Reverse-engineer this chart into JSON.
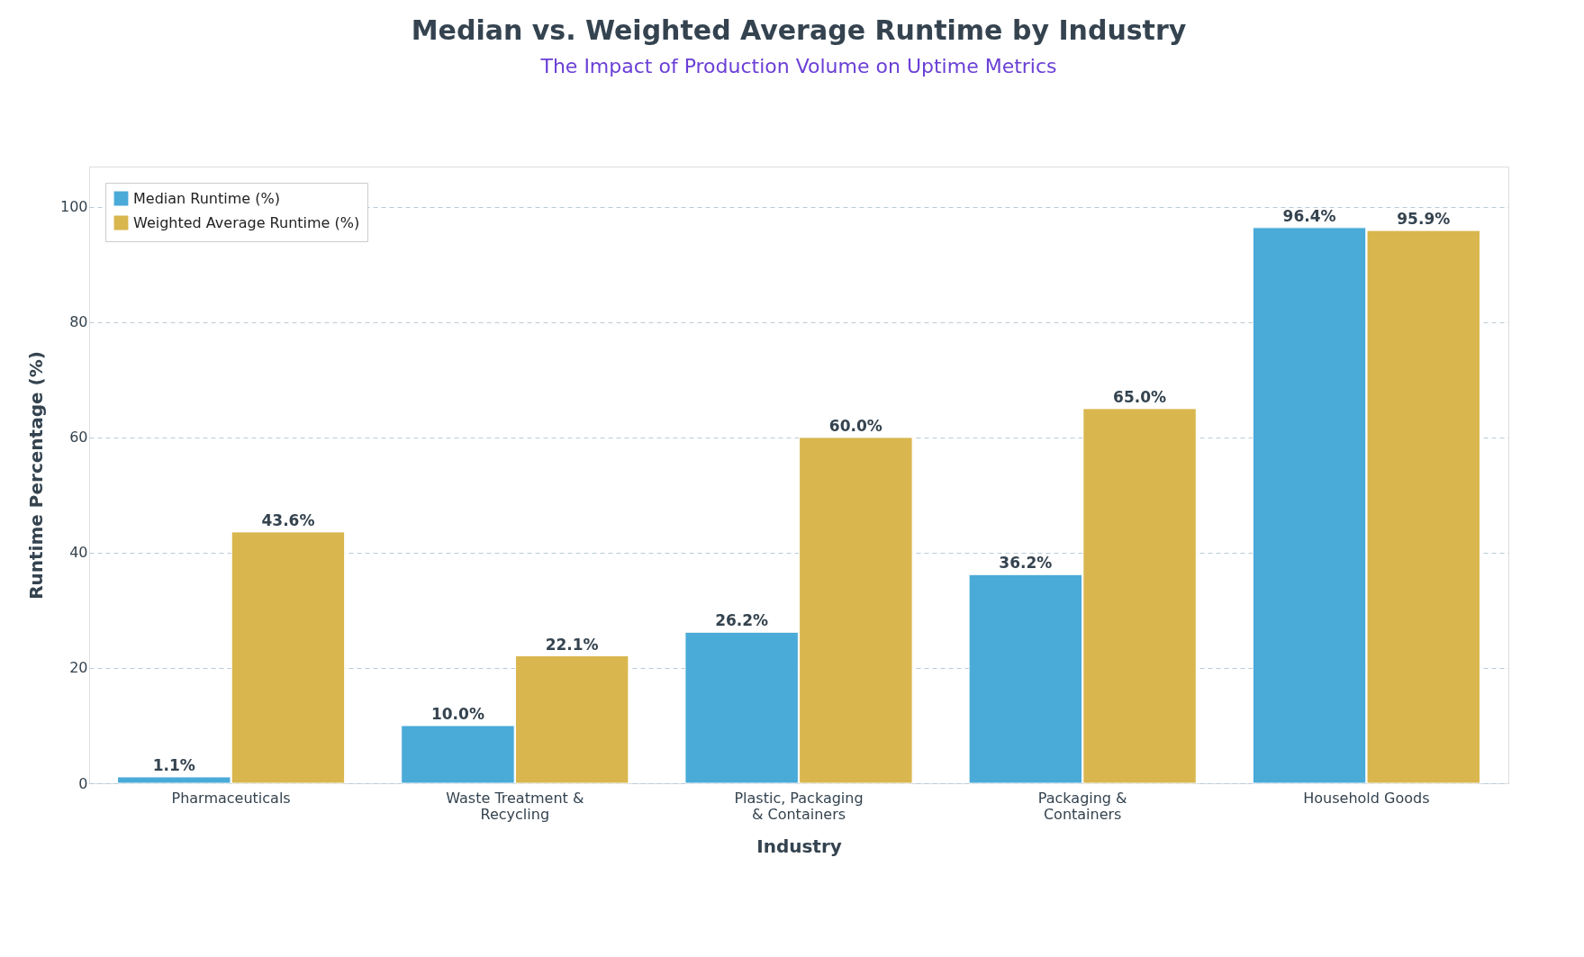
{
  "chart_data": {
    "type": "bar",
    "title": "Median vs. Weighted Average Runtime by Industry",
    "subtitle": "The Impact of Production Volume on Uptime Metrics",
    "xlabel": "Industry",
    "ylabel": "Runtime Percentage (%)",
    "categories": [
      "Pharmaceuticals",
      "Waste Treatment &\nRecycling",
      "Plastic, Packaging\n& Containers",
      "Packaging &\nContainers",
      "Household Goods"
    ],
    "series": [
      {
        "name": "Median Runtime (%)",
        "color": "#4aaad8",
        "values": [
          1.1,
          10.0,
          26.2,
          36.2,
          96.4
        ],
        "value_labels": [
          "1.1%",
          "10.0%",
          "26.2%",
          "36.2%",
          "96.4%"
        ]
      },
      {
        "name": "Weighted Average Runtime (%)",
        "color": "#d9b64e",
        "values": [
          43.6,
          22.1,
          60.0,
          65.0,
          95.9
        ],
        "value_labels": [
          "43.6%",
          "22.1%",
          "60.0%",
          "65.0%",
          "95.9%"
        ]
      }
    ],
    "ylim": [
      0,
      107
    ],
    "yticks": [
      0,
      20,
      40,
      60,
      80,
      100
    ],
    "grid": "y",
    "legend": "top left"
  }
}
